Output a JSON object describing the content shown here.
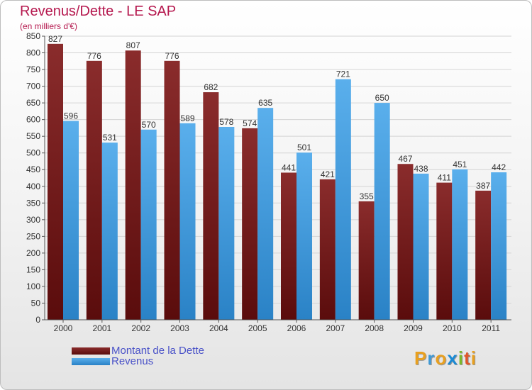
{
  "title": "Revenus/Dette - LE SAP",
  "subtitle": "(en milliers d'€)",
  "colors": {
    "dette": "#6e1d1d",
    "revenus": "#4a9fe0",
    "title": "#b5184e",
    "legend_text": "#4a52c8"
  },
  "legend": {
    "items": [
      {
        "label": "Montant de la Dette",
        "color": "#6e1d1d"
      },
      {
        "label": "Revenus",
        "color": "#4a9fe0"
      }
    ]
  },
  "logo": {
    "text": "Proxiti",
    "letter_colors": [
      "#e8a020",
      "#3f9ad6",
      "#e8a020",
      "#1a8ad4",
      "#7bb82a",
      "#e0562a",
      "#e8a020"
    ]
  },
  "chart_data": {
    "type": "bar",
    "categories": [
      "2000",
      "2001",
      "2002",
      "2003",
      "2004",
      "2005",
      "2006",
      "2007",
      "2008",
      "2009",
      "2010",
      "2011"
    ],
    "series": [
      {
        "name": "Montant de la Dette",
        "values": [
          827,
          776,
          807,
          776,
          682,
          574,
          441,
          421,
          355,
          467,
          411,
          387
        ]
      },
      {
        "name": "Revenus",
        "values": [
          596,
          531,
          570,
          589,
          578,
          635,
          501,
          721,
          650,
          438,
          451,
          442
        ]
      }
    ],
    "y_ticks": [
      0,
      50,
      100,
      150,
      200,
      250,
      300,
      350,
      400,
      450,
      500,
      550,
      600,
      650,
      700,
      750,
      800,
      850
    ],
    "ylim": [
      0,
      850
    ],
    "grid": true,
    "legend_position": "bottom-left"
  }
}
